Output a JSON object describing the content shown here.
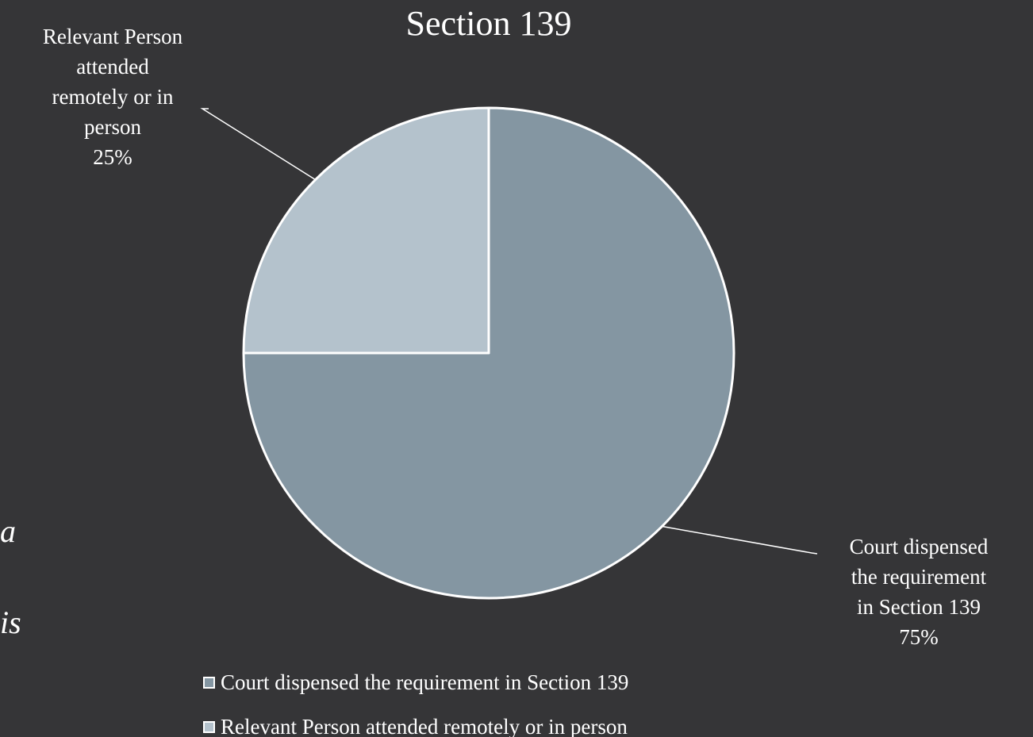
{
  "background_fragments": [
    "a",
    "is"
  ],
  "chart_data": {
    "type": "pie",
    "title": "Section 139",
    "categories": [
      "Court dispensed the requirement in Section 139",
      "Relevant Person attended remotely or in person"
    ],
    "values": [
      75,
      25
    ],
    "unit": "%",
    "colors": [
      "#8496A2",
      "#B4C2CC"
    ],
    "data_labels": [
      {
        "lines": [
          "Court dispensed",
          "the requirement",
          "in Section 139",
          "75%"
        ]
      },
      {
        "lines": [
          "Relevant Person",
          "attended",
          "remotely or in",
          "person",
          "25%"
        ]
      }
    ],
    "legend": {
      "placement": "bottom",
      "entries": [
        "Court dispensed the requirement in Section 139",
        "Relevant Person attended remotely or in person"
      ]
    }
  }
}
